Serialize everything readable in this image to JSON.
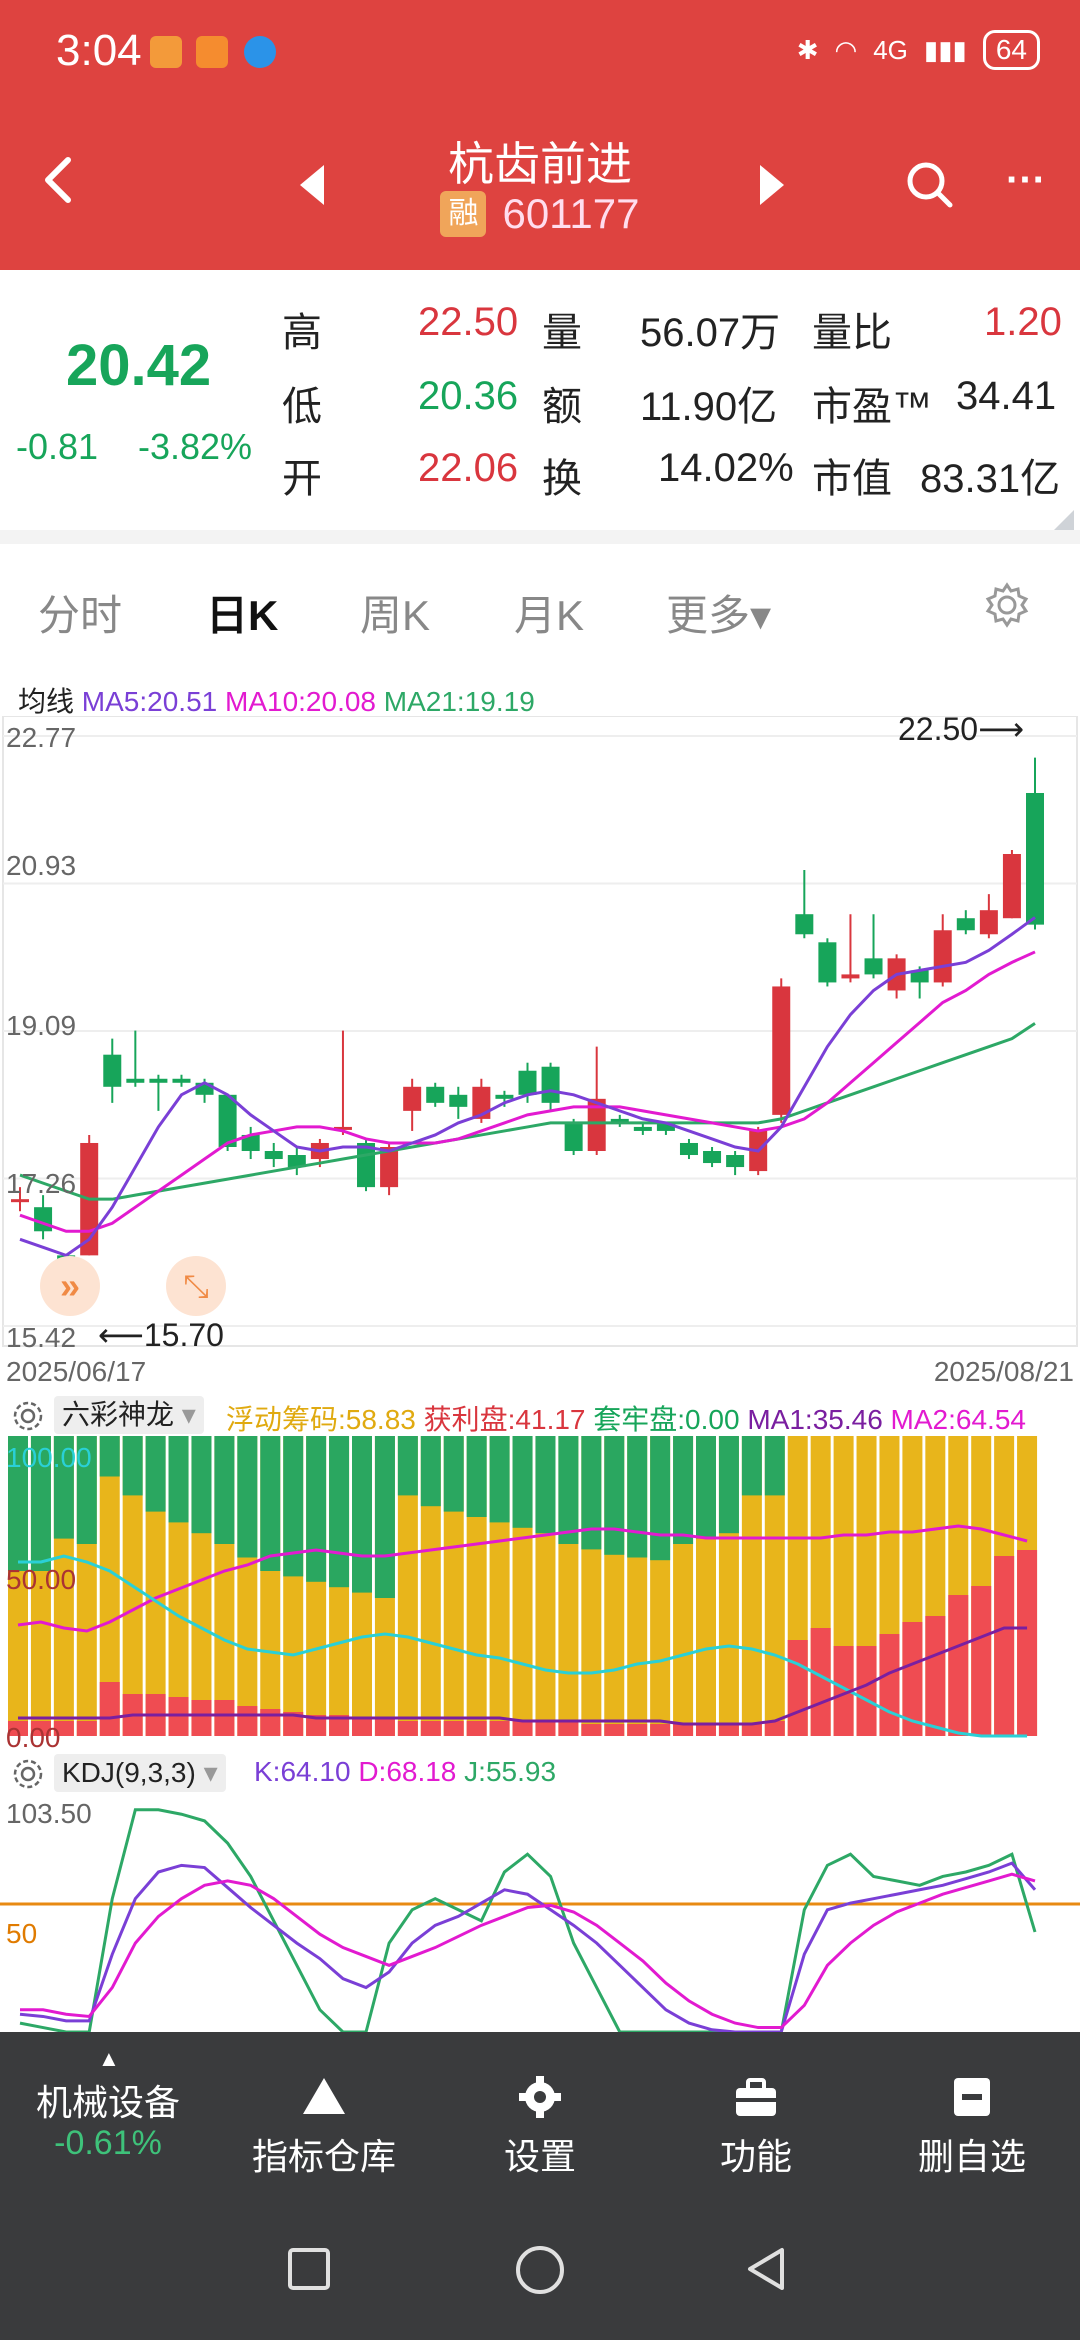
{
  "status_bar": {
    "time": "3:04",
    "network": "4G",
    "battery": "64"
  },
  "header": {
    "title": "杭齿前进",
    "badge": "融",
    "code": "601177"
  },
  "quote": {
    "price": "20.42",
    "change": "-0.81",
    "change_pct": "-3.82%",
    "rows": [
      {
        "l1": "高",
        "v1": "22.50",
        "l2": "量",
        "v2": "56.07万",
        "l3": "量比",
        "v3": "1.20"
      },
      {
        "l1": "低",
        "v1": "20.36",
        "l2": "额",
        "v2": "11.90亿",
        "l3": "市盈™",
        "v3": "34.41"
      },
      {
        "l1": "开",
        "v1": "22.06",
        "l2": "换",
        "v2": "14.02%",
        "l3": "市值",
        "v3": "83.31亿"
      }
    ]
  },
  "tabs": [
    "分时",
    "日K",
    "周K",
    "月K",
    "更多▾"
  ],
  "ma_legend": {
    "label": "均线",
    "ma5": "MA5:20.51",
    "ma10": "MA10:20.08",
    "ma21": "MA21:19.19"
  },
  "price_axis": [
    "22.77",
    "20.93",
    "19.09",
    "17.26",
    "15.42"
  ],
  "date_start": "2025/06/17",
  "date_end": "2025/08/21",
  "high_marker": "22.50⟶",
  "low_marker": "⟵15.70",
  "chips_panel": {
    "name": "六彩神龙",
    "fudong": "浮动筹码:58.83",
    "huoli": "获利盘:41.17",
    "taolao": "套牢盘:0.00",
    "ma1": "MA1:35.46",
    "ma2": "MA2:64.54",
    "axis_top": "100.00",
    "axis_mid": "50.00",
    "axis_bottom": "0.00"
  },
  "kdj_panel": {
    "name": "KDJ(9,3,3)",
    "k": "K:64.10",
    "d": "D:68.18",
    "j": "J:55.93",
    "axis_top": "103.50",
    "axis_mid": "50"
  },
  "toolbar": {
    "sector": "机械设备",
    "sector_change": "-0.61%",
    "items": [
      "指标仓库",
      "设置",
      "功能",
      "删自选"
    ]
  },
  "colors": {
    "header": "#de4340",
    "up": "#d9363e",
    "down": "#17a55a",
    "ma5": "#7a3fd6",
    "ma10": "#e21ad0",
    "ma21": "#2da866"
  },
  "chart_data": {
    "type": "candlestick",
    "ylim": [
      15.42,
      22.77
    ],
    "candles": [
      {
        "o": 17.0,
        "c": 17.0,
        "h": 17.15,
        "l": 16.85
      },
      {
        "o": 16.9,
        "c": 16.6,
        "h": 17.05,
        "l": 16.5
      },
      {
        "o": 16.3,
        "c": 15.9,
        "h": 16.3,
        "l": 15.7
      },
      {
        "o": 16.3,
        "c": 17.7,
        "h": 17.8,
        "l": 16.3
      },
      {
        "o": 18.8,
        "c": 18.4,
        "h": 19.0,
        "l": 18.2
      },
      {
        "o": 18.5,
        "c": 18.45,
        "h": 19.1,
        "l": 18.4
      },
      {
        "o": 18.5,
        "c": 18.45,
        "h": 18.55,
        "l": 18.1
      },
      {
        "o": 18.5,
        "c": 18.45,
        "h": 18.55,
        "l": 18.4
      },
      {
        "o": 18.45,
        "c": 18.3,
        "h": 18.5,
        "l": 18.2
      },
      {
        "o": 18.3,
        "c": 17.65,
        "h": 18.3,
        "l": 17.6
      },
      {
        "o": 17.8,
        "c": 17.6,
        "h": 17.9,
        "l": 17.5
      },
      {
        "o": 17.6,
        "c": 17.5,
        "h": 17.7,
        "l": 17.4
      },
      {
        "o": 17.55,
        "c": 17.4,
        "h": 17.65,
        "l": 17.3
      },
      {
        "o": 17.5,
        "c": 17.7,
        "h": 17.75,
        "l": 17.4
      },
      {
        "o": 17.9,
        "c": 17.9,
        "h": 19.1,
        "l": 17.8
      },
      {
        "o": 17.7,
        "c": 17.15,
        "h": 17.75,
        "l": 17.1
      },
      {
        "o": 17.15,
        "c": 17.65,
        "h": 17.7,
        "l": 17.05
      },
      {
        "o": 18.1,
        "c": 18.4,
        "h": 18.5,
        "l": 17.85
      },
      {
        "o": 18.4,
        "c": 18.2,
        "h": 18.45,
        "l": 18.15
      },
      {
        "o": 18.3,
        "c": 18.15,
        "h": 18.4,
        "l": 18.0
      },
      {
        "o": 18.0,
        "c": 18.4,
        "h": 18.5,
        "l": 17.95
      },
      {
        "o": 18.3,
        "c": 18.25,
        "h": 18.35,
        "l": 18.15
      },
      {
        "o": 18.6,
        "c": 18.3,
        "h": 18.7,
        "l": 18.2
      },
      {
        "o": 18.65,
        "c": 18.2,
        "h": 18.7,
        "l": 18.1
      },
      {
        "o": 17.95,
        "c": 17.6,
        "h": 18.0,
        "l": 17.55
      },
      {
        "o": 17.6,
        "c": 18.25,
        "h": 18.9,
        "l": 17.55
      },
      {
        "o": 18.0,
        "c": 17.95,
        "h": 18.05,
        "l": 17.9
      },
      {
        "o": 17.9,
        "c": 17.85,
        "h": 17.95,
        "l": 17.8
      },
      {
        "o": 17.95,
        "c": 17.85,
        "h": 17.95,
        "l": 17.8
      },
      {
        "o": 17.7,
        "c": 17.55,
        "h": 17.75,
        "l": 17.5
      },
      {
        "o": 17.6,
        "c": 17.45,
        "h": 17.65,
        "l": 17.4
      },
      {
        "o": 17.55,
        "c": 17.4,
        "h": 17.6,
        "l": 17.3
      },
      {
        "o": 17.35,
        "c": 17.85,
        "h": 17.9,
        "l": 17.3
      },
      {
        "o": 18.05,
        "c": 19.65,
        "h": 19.75,
        "l": 17.95
      },
      {
        "o": 20.55,
        "c": 20.3,
        "h": 21.1,
        "l": 20.25
      },
      {
        "o": 20.2,
        "c": 19.7,
        "h": 20.25,
        "l": 19.65
      },
      {
        "o": 19.75,
        "c": 19.8,
        "h": 20.55,
        "l": 19.7
      },
      {
        "o": 20.0,
        "c": 19.8,
        "h": 20.55,
        "l": 19.75
      },
      {
        "o": 19.6,
        "c": 20.0,
        "h": 20.05,
        "l": 19.5
      },
      {
        "o": 19.85,
        "c": 19.7,
        "h": 19.9,
        "l": 19.5
      },
      {
        "o": 19.7,
        "c": 20.35,
        "h": 20.55,
        "l": 19.65
      },
      {
        "o": 20.5,
        "c": 20.35,
        "h": 20.6,
        "l": 20.3
      },
      {
        "o": 20.3,
        "c": 20.6,
        "h": 20.8,
        "l": 20.25
      },
      {
        "o": 20.5,
        "c": 21.3,
        "h": 21.35,
        "l": 20.5
      },
      {
        "o": 22.06,
        "c": 20.42,
        "h": 22.5,
        "l": 20.36
      }
    ],
    "ma5": [
      16.5,
      16.4,
      16.3,
      16.5,
      16.9,
      17.4,
      17.9,
      18.3,
      18.45,
      18.3,
      18.05,
      17.85,
      17.65,
      17.6,
      17.65,
      17.65,
      17.6,
      17.7,
      17.8,
      17.95,
      18.05,
      18.2,
      18.3,
      18.35,
      18.3,
      18.2,
      18.1,
      18.0,
      17.95,
      17.85,
      17.75,
      17.65,
      17.6,
      17.9,
      18.4,
      18.9,
      19.3,
      19.6,
      19.8,
      19.85,
      19.9,
      19.95,
      20.1,
      20.3,
      20.51
    ],
    "ma10": [
      16.8,
      16.7,
      16.6,
      16.6,
      16.7,
      16.9,
      17.1,
      17.3,
      17.5,
      17.7,
      17.8,
      17.85,
      17.9,
      17.9,
      17.85,
      17.75,
      17.7,
      17.7,
      17.7,
      17.75,
      17.85,
      17.95,
      18.05,
      18.1,
      18.15,
      18.15,
      18.15,
      18.1,
      18.05,
      18.0,
      17.95,
      17.9,
      17.85,
      17.9,
      18.0,
      18.2,
      18.45,
      18.7,
      18.95,
      19.2,
      19.45,
      19.6,
      19.8,
      19.95,
      20.08
    ],
    "ma21": [
      17.3,
      17.2,
      17.1,
      17.0,
      17.0,
      17.05,
      17.1,
      17.15,
      17.2,
      17.25,
      17.3,
      17.35,
      17.4,
      17.45,
      17.5,
      17.55,
      17.6,
      17.65,
      17.7,
      17.75,
      17.8,
      17.85,
      17.9,
      17.95,
      17.95,
      17.95,
      17.95,
      17.95,
      17.95,
      17.95,
      17.95,
      17.95,
      17.95,
      18.0,
      18.1,
      18.2,
      18.3,
      18.4,
      18.5,
      18.6,
      18.7,
      18.8,
      18.9,
      19.0,
      19.19
    ]
  }
}
